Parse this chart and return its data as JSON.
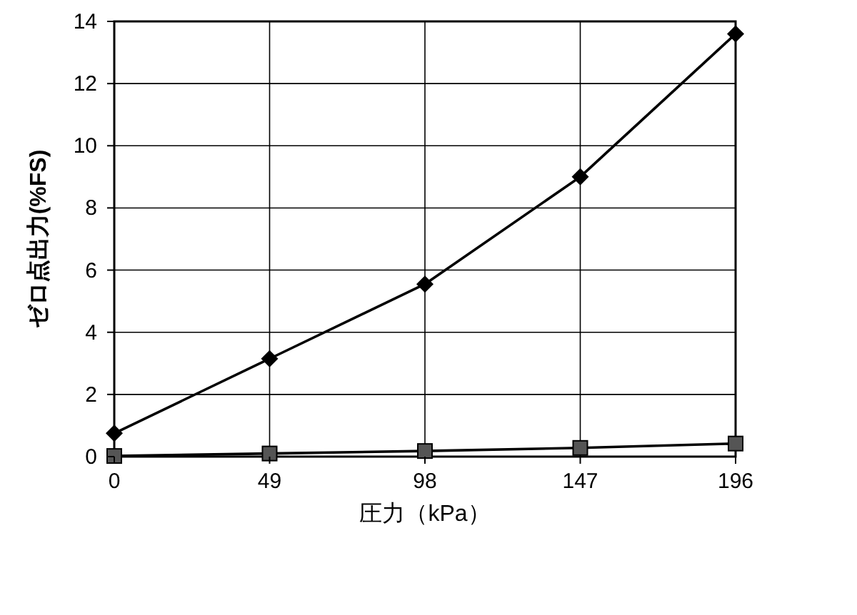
{
  "chart_data": {
    "type": "line",
    "xlabel": "圧力（kPa）",
    "ylabel": "ゼロ点出力(%FS)",
    "x": [
      0,
      49,
      98,
      147,
      196
    ],
    "xlim": [
      0,
      196
    ],
    "xticks": [
      0,
      49,
      98,
      147,
      196
    ],
    "ylim": [
      0,
      14
    ],
    "yticks": [
      0,
      2,
      4,
      6,
      8,
      10,
      12,
      14
    ],
    "grid": true,
    "line_style": "solid",
    "series": [
      {
        "color": "#000000",
        "marker": "diamond",
        "values": [
          0.75,
          3.15,
          5.55,
          9.0,
          13.6
        ]
      },
      {
        "color": "#000000",
        "marker": "square",
        "values": [
          0.02,
          0.1,
          0.18,
          0.28,
          0.42
        ]
      }
    ]
  }
}
